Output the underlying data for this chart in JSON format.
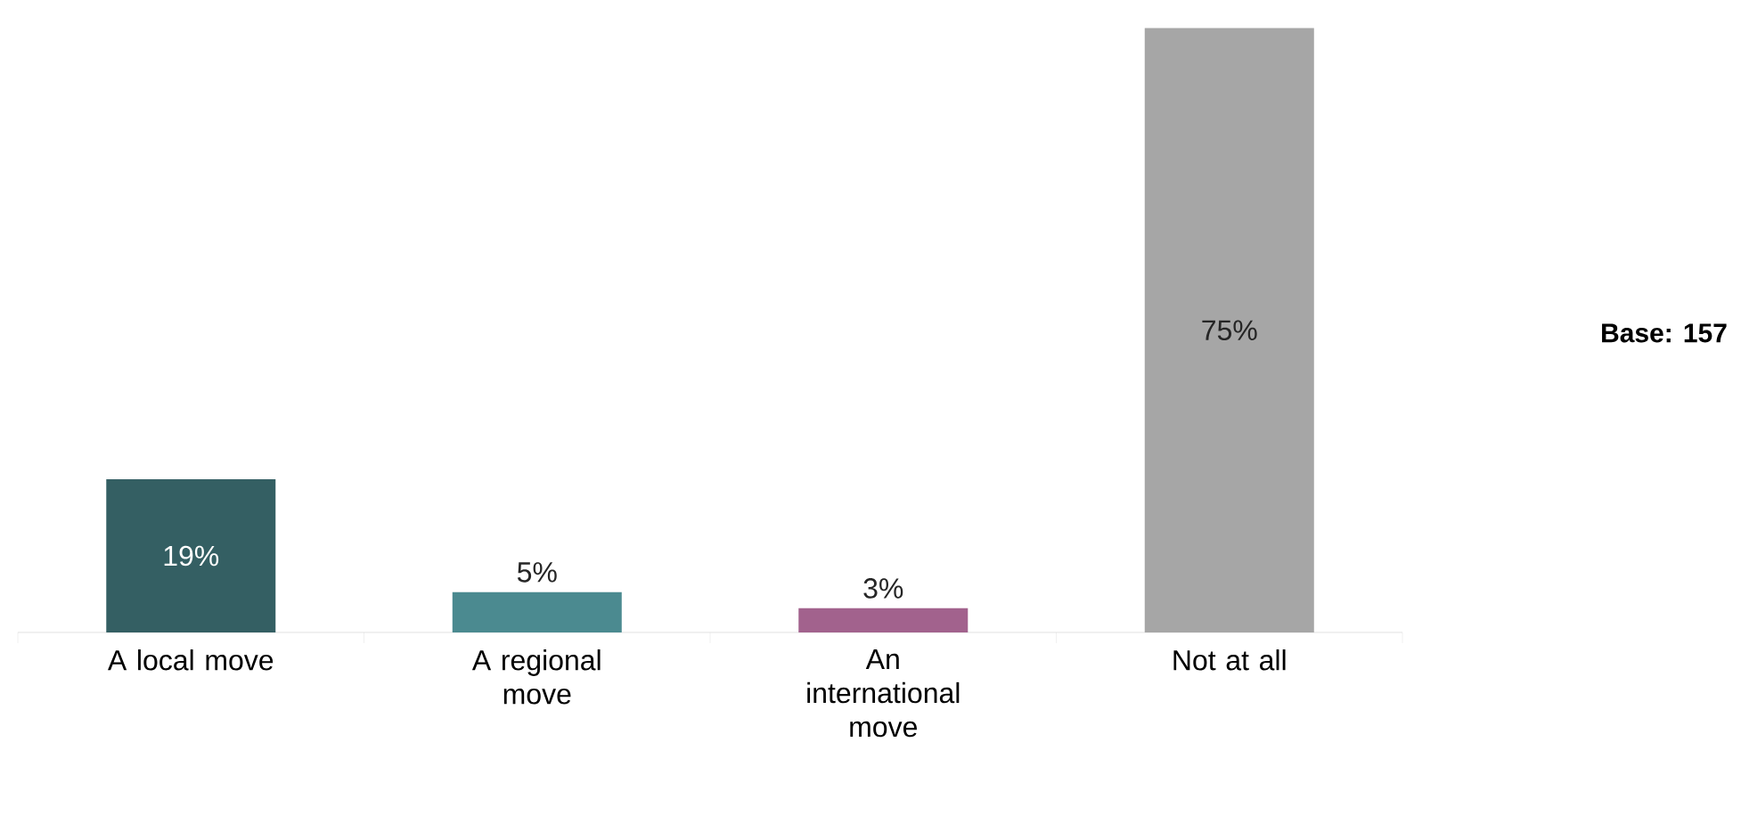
{
  "chart_data": {
    "type": "bar",
    "categories": [
      "A local move",
      "A regional move",
      "An international move",
      "Not at all"
    ],
    "values": [
      19,
      5,
      3,
      75
    ],
    "colors": [
      "#345f63",
      "#4b8a90",
      "#a2628d",
      "#a6a6a6"
    ],
    "value_labels": [
      "19%",
      "5%",
      "3%",
      "75%"
    ],
    "data_labels": true,
    "annotations": [
      "**Base: 157**"
    ]
  }
}
